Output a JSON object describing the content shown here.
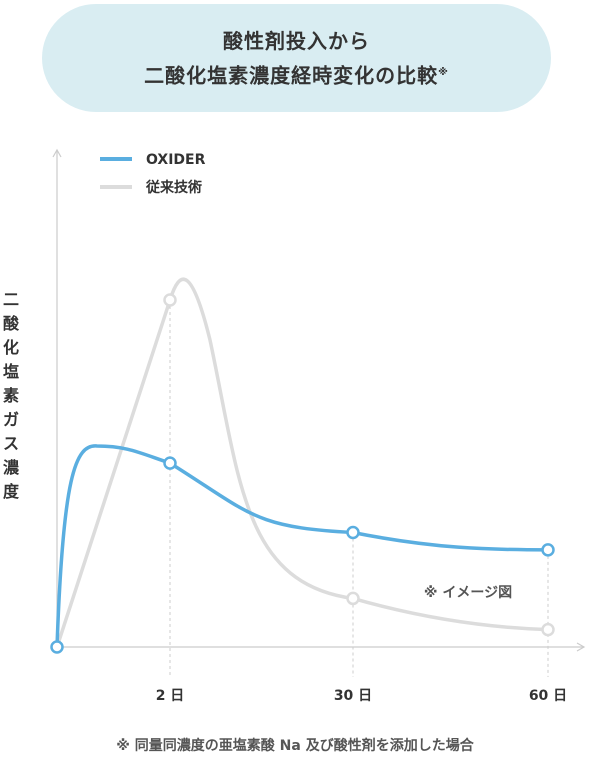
{
  "title": {
    "line1": "酸性剤投入から",
    "line2": "二酸化塩素濃度経時変化の比較",
    "mark": "※"
  },
  "chart_data": {
    "type": "line",
    "ylabel": "二酸化塩素ガス濃度",
    "xlabel": "",
    "x_ticks": [
      "2 日",
      "30 日",
      "60 日"
    ],
    "legend_position": "top-left",
    "annotation": "※ イメージ図",
    "grid": false,
    "series": [
      {
        "name": "OXIDER",
        "color": "#5aaee0",
        "marked_values": [
          {
            "x": "start",
            "y": 0
          },
          {
            "x": "2 日",
            "y": 53
          },
          {
            "x": "30 日",
            "y": 33
          },
          {
            "x": "60 日",
            "y": 28
          }
        ]
      },
      {
        "name": "従来技術",
        "color": "#dcdcdc",
        "marked_values": [
          {
            "x": "start",
            "y": 0
          },
          {
            "x": "2 日",
            "y": 100
          },
          {
            "x": "30 日",
            "y": 14
          },
          {
            "x": "60 日",
            "y": 5
          }
        ]
      }
    ]
  },
  "footnote": "※ 同量同濃度の亜塩素酸 Na 及び酸性剤を添加した場合"
}
